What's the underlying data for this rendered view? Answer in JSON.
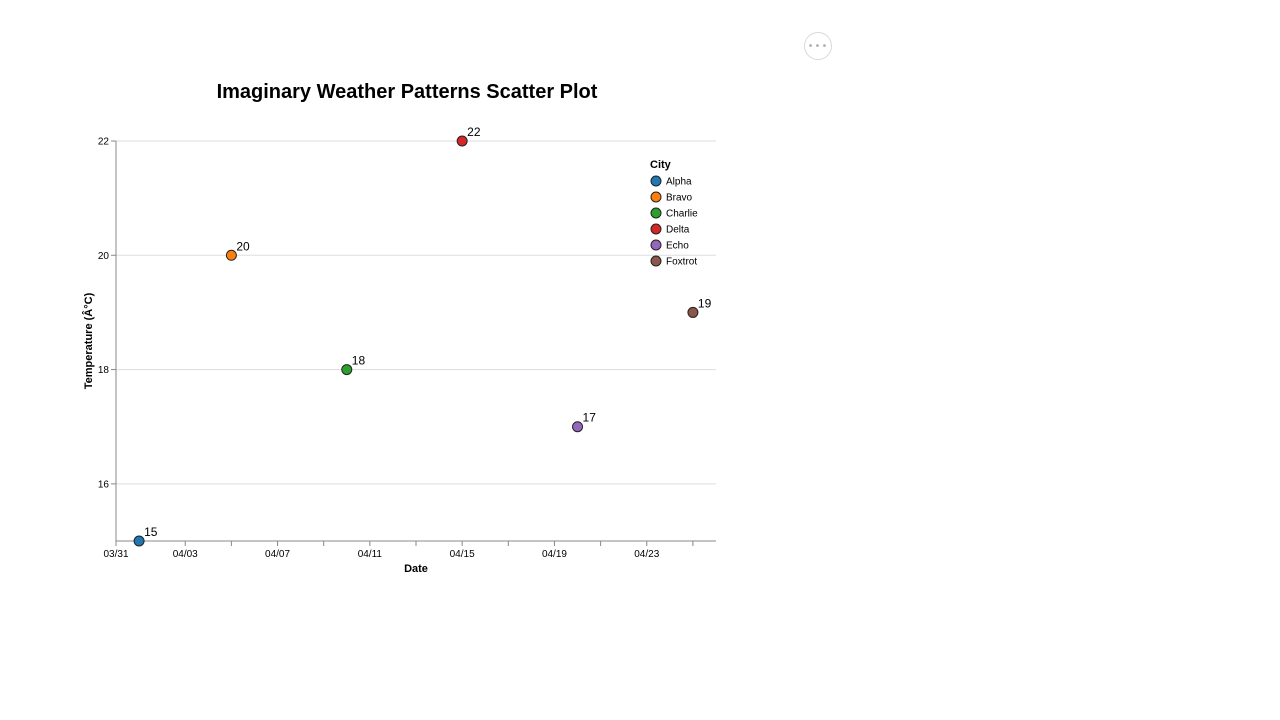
{
  "toolbar": {
    "more_icon": "more-horizontal-icon",
    "more_label": "•••"
  },
  "chart_data": {
    "type": "scatter",
    "title": "Imaginary Weather Patterns Scatter Plot",
    "xlabel": "Date",
    "ylabel": "Temperature (Â°C)",
    "x_type": "date",
    "xlim": [
      "2023-03-31",
      "2023-04-26"
    ],
    "ylim": [
      15,
      22
    ],
    "x_ticks": [
      "03/31",
      "04/03",
      "04/07",
      "04/11",
      "04/15",
      "04/19",
      "04/23"
    ],
    "x_tick_dates": [
      "2023-03-31",
      "2023-04-03",
      "2023-04-07",
      "2023-04-11",
      "2023-04-15",
      "2023-04-19",
      "2023-04-23"
    ],
    "x_minor_tick_dates": [
      "2023-04-05",
      "2023-04-09",
      "2023-04-13",
      "2023-04-17",
      "2023-04-21",
      "2023-04-25"
    ],
    "y_ticks": [
      16,
      18,
      20,
      22
    ],
    "grid": true,
    "legend": {
      "title": "City",
      "position": "top-right"
    },
    "series": [
      {
        "name": "Alpha",
        "color": "#1f77b4",
        "points": [
          {
            "x": "2023-04-01",
            "y": 15
          }
        ]
      },
      {
        "name": "Bravo",
        "color": "#ff7f0e",
        "points": [
          {
            "x": "2023-04-05",
            "y": 20
          }
        ]
      },
      {
        "name": "Charlie",
        "color": "#2ca02c",
        "points": [
          {
            "x": "2023-04-10",
            "y": 18
          }
        ]
      },
      {
        "name": "Delta",
        "color": "#d62728",
        "points": [
          {
            "x": "2023-04-15",
            "y": 22
          }
        ]
      },
      {
        "name": "Echo",
        "color": "#9467bd",
        "points": [
          {
            "x": "2023-04-20",
            "y": 17
          }
        ]
      },
      {
        "name": "Foxtrot",
        "color": "#8c564b",
        "points": [
          {
            "x": "2023-04-25",
            "y": 19
          }
        ]
      }
    ]
  }
}
